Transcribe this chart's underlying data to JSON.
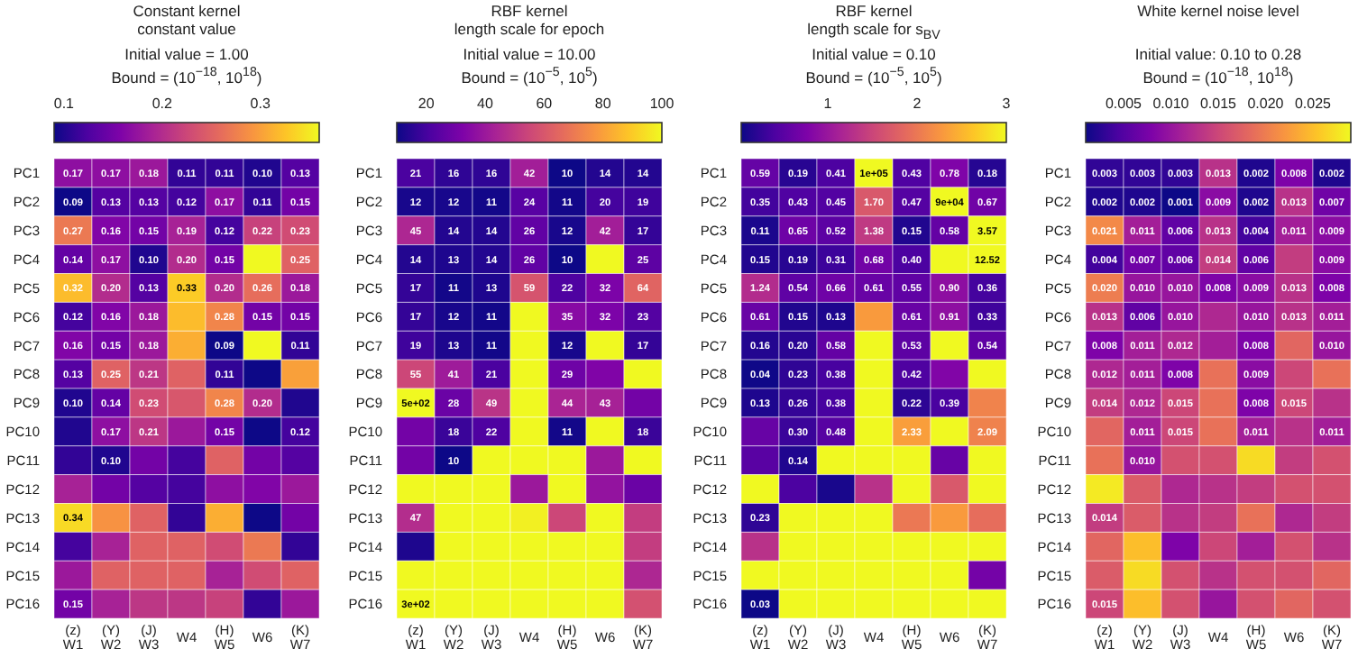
{
  "chart_data": [
    {
      "type": "heatmap",
      "title": "Constant kernel\nconstant value",
      "subtitle": "Initial value = 1.00\nBound = (10$^{−18}$, 10$^{18}$)",
      "categories": [
        "(z)\nW1",
        "(Y)\nW2",
        "(J)\nW3",
        "W4",
        "(H)\nW5",
        "W6",
        "(K)\nW7"
      ],
      "y_categories": [
        "PC1",
        "PC2",
        "PC3",
        "PC4",
        "PC5",
        "PC6",
        "PC7",
        "PC8",
        "PC9",
        "PC10",
        "PC11",
        "PC12",
        "PC13",
        "PC14",
        "PC15",
        "PC16"
      ],
      "clim": [
        0.09,
        0.36
      ],
      "cticks": [
        0.1,
        0.2,
        0.3
      ],
      "cells": [
        [
          0.17,
          0.17,
          0.18,
          0.11,
          0.11,
          0.1,
          0.13
        ],
        [
          0.09,
          0.13,
          0.13,
          0.12,
          0.17,
          0.11,
          0.15
        ],
        [
          0.27,
          0.16,
          0.15,
          0.19,
          0.12,
          0.22,
          0.23
        ],
        [
          0.14,
          0.17,
          0.1,
          0.2,
          0.15,
          0.36,
          0.25
        ],
        [
          0.32,
          0.2,
          0.13,
          0.33,
          0.2,
          0.26,
          0.18
        ],
        [
          0.12,
          0.16,
          0.18,
          0.32,
          0.28,
          0.15,
          0.15
        ],
        [
          0.16,
          0.15,
          0.18,
          0.31,
          0.09,
          0.36,
          0.11
        ],
        [
          0.13,
          0.25,
          0.21,
          0.25,
          0.11,
          0.09,
          0.3
        ],
        [
          0.1,
          0.14,
          0.23,
          0.24,
          0.28,
          0.2,
          0.1
        ],
        [
          0.1,
          0.17,
          0.21,
          0.18,
          0.15,
          0.09,
          0.12
        ],
        [
          0.11,
          0.1,
          0.15,
          0.12,
          0.25,
          0.15,
          0.13
        ],
        [
          0.19,
          0.15,
          0.13,
          0.12,
          0.17,
          0.16,
          0.18
        ],
        [
          0.34,
          0.29,
          0.25,
          0.11,
          0.31,
          0.09,
          0.15
        ],
        [
          0.12,
          0.19,
          0.25,
          0.25,
          0.23,
          0.27,
          0.11
        ],
        [
          0.18,
          0.25,
          0.25,
          0.25,
          0.19,
          0.23,
          0.25
        ],
        [
          0.15,
          0.19,
          0.21,
          0.21,
          0.22,
          0.11,
          0.18
        ]
      ],
      "cell_labels": [
        [
          "0.17",
          "0.17",
          "0.18",
          "0.11",
          "0.11",
          "0.10",
          "0.13"
        ],
        [
          "0.09",
          "0.13",
          "0.13",
          "0.12",
          "0.17",
          "0.11",
          "0.15"
        ],
        [
          "0.27",
          "0.16",
          "0.15",
          "0.19",
          "0.12",
          "0.22",
          "0.23"
        ],
        [
          "0.14",
          "0.17",
          "0.10",
          "0.20",
          "0.15",
          null,
          "0.25"
        ],
        [
          "0.32",
          "0.20",
          "0.13",
          "0.33",
          "0.20",
          "0.26",
          "0.18"
        ],
        [
          "0.12",
          "0.16",
          "0.18",
          null,
          "0.28",
          "0.15",
          "0.15"
        ],
        [
          "0.16",
          "0.15",
          "0.18",
          null,
          "0.09",
          null,
          "0.11"
        ],
        [
          "0.13",
          "0.25",
          "0.21",
          null,
          "0.11",
          null,
          null
        ],
        [
          "0.10",
          "0.14",
          "0.23",
          null,
          "0.28",
          "0.20",
          null
        ],
        [
          null,
          "0.17",
          "0.21",
          null,
          "0.15",
          null,
          "0.12"
        ],
        [
          null,
          "0.10",
          null,
          null,
          null,
          null,
          null
        ],
        [
          null,
          null,
          null,
          null,
          null,
          null,
          null
        ],
        [
          "0.34",
          null,
          null,
          null,
          null,
          null,
          null
        ],
        [
          null,
          null,
          null,
          null,
          null,
          null,
          null
        ],
        [
          null,
          null,
          null,
          null,
          null,
          null,
          null
        ],
        [
          "0.15",
          null,
          null,
          null,
          null,
          null,
          null
        ]
      ]
    },
    {
      "type": "heatmap",
      "title": "RBF kernel\nlength scale for epoch",
      "subtitle": "Initial value = 10.00\nBound = (10$^{−5}$, 10$^{5}$)",
      "categories": [
        "(z)\nW1",
        "(Y)\nW2",
        "(J)\nW3",
        "W4",
        "(H)\nW5",
        "W6",
        "(K)\nW7"
      ],
      "y_categories": [
        "PC1",
        "PC2",
        "PC3",
        "PC4",
        "PC5",
        "PC6",
        "PC7",
        "PC8",
        "PC9",
        "PC10",
        "PC11",
        "PC12",
        "PC13",
        "PC14",
        "PC15",
        "PC16"
      ],
      "clim": [
        10,
        100
      ],
      "cticks": [
        20,
        40,
        60,
        80,
        100
      ],
      "cells": [
        [
          21,
          16,
          16,
          42,
          10,
          14,
          14
        ],
        [
          12,
          12,
          11,
          24,
          11,
          20,
          19
        ],
        [
          45,
          14,
          14,
          26,
          12,
          42,
          17
        ],
        [
          14,
          13,
          14,
          26,
          10,
          100,
          25
        ],
        [
          17,
          11,
          13,
          59,
          22,
          32,
          64
        ],
        [
          17,
          12,
          11,
          100,
          35,
          32,
          23
        ],
        [
          19,
          13,
          11,
          100,
          12,
          100,
          17
        ],
        [
          55,
          41,
          21,
          100,
          29,
          33,
          100
        ],
        [
          500,
          28,
          49,
          100,
          44,
          43,
          30
        ],
        [
          30,
          18,
          22,
          100,
          11,
          100,
          18
        ],
        [
          30,
          10,
          100,
          100,
          100,
          40,
          100
        ],
        [
          100,
          100,
          100,
          40,
          100,
          38,
          28
        ],
        [
          47,
          100,
          100,
          98,
          55,
          100,
          52
        ],
        [
          13,
          100,
          100,
          100,
          100,
          100,
          52
        ],
        [
          100,
          100,
          100,
          100,
          100,
          100,
          45
        ],
        [
          300,
          100,
          100,
          100,
          100,
          100,
          58
        ]
      ],
      "cell_labels": [
        [
          "21",
          "16",
          "16",
          "42",
          "10",
          "14",
          "14"
        ],
        [
          "12",
          "12",
          "11",
          "24",
          "11",
          "20",
          "19"
        ],
        [
          "45",
          "14",
          "14",
          "26",
          "12",
          "42",
          "17"
        ],
        [
          "14",
          "13",
          "14",
          "26",
          "10",
          null,
          "25"
        ],
        [
          "17",
          "11",
          "13",
          "59",
          "22",
          "32",
          "64"
        ],
        [
          "17",
          "12",
          "11",
          null,
          "35",
          "32",
          "23"
        ],
        [
          "19",
          "13",
          "11",
          null,
          "12",
          null,
          "17"
        ],
        [
          "55",
          "41",
          "21",
          null,
          "29",
          null,
          null
        ],
        [
          "5e+02",
          "28",
          "49",
          null,
          "44",
          "43",
          null
        ],
        [
          null,
          "18",
          "22",
          null,
          "11",
          null,
          "18"
        ],
        [
          null,
          "10",
          null,
          null,
          null,
          null,
          null
        ],
        [
          null,
          null,
          null,
          null,
          null,
          null,
          null
        ],
        [
          "47",
          null,
          null,
          null,
          null,
          null,
          null
        ],
        [
          null,
          null,
          null,
          null,
          null,
          null,
          null
        ],
        [
          null,
          null,
          null,
          null,
          null,
          null,
          null
        ],
        [
          "3e+02",
          null,
          null,
          null,
          null,
          null,
          null
        ]
      ]
    },
    {
      "type": "heatmap",
      "title": "RBF kernel\nlength scale for s$_{BV}$",
      "subtitle": "Initial value = 0.10\nBound = (10$^{−5}$, 10$^{5}$)",
      "categories": [
        "(z)\nW1",
        "(Y)\nW2",
        "(J)\nW3",
        "W4",
        "(H)\nW5",
        "W6",
        "(K)\nW7"
      ],
      "y_categories": [
        "PC1",
        "PC2",
        "PC3",
        "PC4",
        "PC5",
        "PC6",
        "PC7",
        "PC8",
        "PC9",
        "PC10",
        "PC11",
        "PC12",
        "PC13",
        "PC14",
        "PC15",
        "PC16"
      ],
      "clim": [
        0.03,
        3
      ],
      "cticks": [
        1,
        2,
        3
      ],
      "cells": [
        [
          0.59,
          0.19,
          0.41,
          100000,
          0.43,
          0.78,
          0.18
        ],
        [
          0.35,
          0.43,
          0.45,
          1.7,
          0.47,
          90000,
          0.67
        ],
        [
          0.11,
          0.65,
          0.52,
          1.38,
          0.15,
          0.58,
          3.57
        ],
        [
          0.15,
          0.19,
          0.31,
          0.68,
          0.4,
          3,
          12.52
        ],
        [
          1.24,
          0.54,
          0.66,
          0.61,
          0.55,
          0.9,
          0.36
        ],
        [
          0.61,
          0.15,
          0.13,
          2.3,
          0.61,
          0.91,
          0.33
        ],
        [
          0.16,
          0.2,
          0.58,
          3,
          0.53,
          3,
          0.54
        ],
        [
          0.04,
          0.23,
          0.38,
          3,
          0.42,
          0.8,
          3
        ],
        [
          0.13,
          0.26,
          0.38,
          3,
          0.22,
          0.39,
          2.1
        ],
        [
          0.6,
          0.3,
          0.48,
          3,
          2.33,
          3,
          2.09
        ],
        [
          0.5,
          0.14,
          3,
          3,
          3,
          0.6,
          3
        ],
        [
          3,
          0.4,
          0.1,
          1.3,
          3,
          1.7,
          3
        ],
        [
          0.23,
          3,
          3,
          3,
          2.0,
          2.3,
          1.9
        ],
        [
          1.3,
          3,
          3,
          3,
          3,
          3,
          3
        ],
        [
          3,
          3,
          3,
          3,
          3,
          3,
          0.7
        ],
        [
          0.03,
          3,
          3,
          3,
          3,
          3,
          3
        ]
      ],
      "cell_labels": [
        [
          "0.59",
          "0.19",
          "0.41",
          "1e+05",
          "0.43",
          "0.78",
          "0.18"
        ],
        [
          "0.35",
          "0.43",
          "0.45",
          "1.70",
          "0.47",
          "9e+04",
          "0.67"
        ],
        [
          "0.11",
          "0.65",
          "0.52",
          "1.38",
          "0.15",
          "0.58",
          "3.57"
        ],
        [
          "0.15",
          "0.19",
          "0.31",
          "0.68",
          "0.40",
          null,
          "12.52"
        ],
        [
          "1.24",
          "0.54",
          "0.66",
          "0.61",
          "0.55",
          "0.90",
          "0.36"
        ],
        [
          "0.61",
          "0.15",
          "0.13",
          null,
          "0.61",
          "0.91",
          "0.33"
        ],
        [
          "0.16",
          "0.20",
          "0.58",
          null,
          "0.53",
          null,
          "0.54"
        ],
        [
          "0.04",
          "0.23",
          "0.38",
          null,
          "0.42",
          null,
          null
        ],
        [
          "0.13",
          "0.26",
          "0.38",
          null,
          "0.22",
          "0.39",
          null
        ],
        [
          null,
          "0.30",
          "0.48",
          null,
          "2.33",
          null,
          "2.09"
        ],
        [
          null,
          "0.14",
          null,
          null,
          null,
          null,
          null
        ],
        [
          null,
          null,
          null,
          null,
          null,
          null,
          null
        ],
        [
          "0.23",
          null,
          null,
          null,
          null,
          null,
          null
        ],
        [
          null,
          null,
          null,
          null,
          null,
          null,
          null
        ],
        [
          null,
          null,
          null,
          null,
          null,
          null,
          null
        ],
        [
          "0.03",
          null,
          null,
          null,
          null,
          null,
          null
        ]
      ]
    },
    {
      "type": "heatmap",
      "title": "White kernel noise level",
      "subtitle": "Initial value: 0.10 to 0.28\nBound = (10$^{−18}$, 10$^{18}$)",
      "categories": [
        "(z)\nW1",
        "(Y)\nW2",
        "(J)\nW3",
        "W4",
        "(H)\nW5",
        "W6",
        "(K)\nW7"
      ],
      "y_categories": [
        "PC1",
        "PC2",
        "PC3",
        "PC4",
        "PC5",
        "PC6",
        "PC7",
        "PC8",
        "PC9",
        "PC10",
        "PC11",
        "PC12",
        "PC13",
        "PC14",
        "PC15",
        "PC16"
      ],
      "clim": [
        0.001,
        0.029
      ],
      "cticks": [
        0.005,
        {
          "value": 0.01,
          "label": "0.010"
        },
        0.015,
        {
          "value": 0.02,
          "label": "0.020"
        },
        0.025
      ],
      "cells": [
        [
          0.003,
          0.003,
          0.003,
          0.013,
          0.002,
          0.008,
          0.002
        ],
        [
          0.002,
          0.002,
          0.001,
          0.009,
          0.002,
          0.013,
          0.007
        ],
        [
          0.021,
          0.011,
          0.006,
          0.013,
          0.004,
          0.011,
          0.009
        ],
        [
          0.004,
          0.007,
          0.006,
          0.014,
          0.006,
          0.014,
          0.009
        ],
        [
          0.02,
          0.01,
          0.01,
          0.008,
          0.009,
          0.013,
          0.008
        ],
        [
          0.013,
          0.006,
          0.01,
          0.012,
          0.01,
          0.013,
          0.011
        ],
        [
          0.008,
          0.011,
          0.012,
          0.011,
          0.008,
          0.018,
          0.01
        ],
        [
          0.012,
          0.011,
          0.008,
          0.019,
          0.009,
          0.015,
          0.019
        ],
        [
          0.014,
          0.012,
          0.015,
          0.019,
          0.008,
          0.015,
          0.013
        ],
        [
          0.018,
          0.011,
          0.015,
          0.019,
          0.011,
          0.013,
          0.011
        ],
        [
          0.019,
          0.01,
          0.016,
          0.016,
          0.027,
          0.014,
          0.016
        ],
        [
          0.028,
          0.017,
          0.012,
          0.013,
          0.014,
          0.016,
          0.016
        ],
        [
          0.014,
          0.017,
          0.013,
          0.014,
          0.019,
          0.012,
          0.014
        ],
        [
          0.018,
          0.025,
          0.008,
          0.015,
          0.011,
          0.016,
          0.013
        ],
        [
          0.017,
          0.027,
          0.016,
          0.013,
          0.016,
          0.016,
          0.018
        ],
        [
          0.015,
          0.025,
          0.016,
          0.01,
          0.016,
          0.018,
          0.016
        ]
      ],
      "cell_labels": [
        [
          "0.003",
          "0.003",
          "0.003",
          "0.013",
          "0.002",
          "0.008",
          "0.002"
        ],
        [
          "0.002",
          "0.002",
          "0.001",
          "0.009",
          "0.002",
          "0.013",
          "0.007"
        ],
        [
          "0.021",
          "0.011",
          "0.006",
          "0.013",
          "0.004",
          "0.011",
          "0.009"
        ],
        [
          "0.004",
          "0.007",
          "0.006",
          "0.014",
          "0.006",
          null,
          "0.009"
        ],
        [
          "0.020",
          "0.010",
          "0.010",
          "0.008",
          "0.009",
          "0.013",
          "0.008"
        ],
        [
          "0.013",
          "0.006",
          "0.010",
          null,
          "0.010",
          "0.013",
          "0.011"
        ],
        [
          "0.008",
          "0.011",
          "0.012",
          null,
          "0.008",
          null,
          "0.010"
        ],
        [
          "0.012",
          "0.011",
          "0.008",
          null,
          "0.009",
          null,
          null
        ],
        [
          "0.014",
          "0.012",
          "0.015",
          null,
          "0.008",
          "0.015",
          null
        ],
        [
          null,
          "0.011",
          "0.015",
          null,
          "0.011",
          null,
          "0.011"
        ],
        [
          null,
          "0.010",
          null,
          null,
          null,
          null,
          null
        ],
        [
          null,
          null,
          null,
          null,
          null,
          null,
          null
        ],
        [
          "0.014",
          null,
          null,
          null,
          null,
          null,
          null
        ],
        [
          null,
          null,
          null,
          null,
          null,
          null,
          null
        ],
        [
          null,
          null,
          null,
          null,
          null,
          null,
          null
        ],
        [
          "0.015",
          null,
          null,
          null,
          null,
          null,
          null
        ]
      ]
    }
  ]
}
